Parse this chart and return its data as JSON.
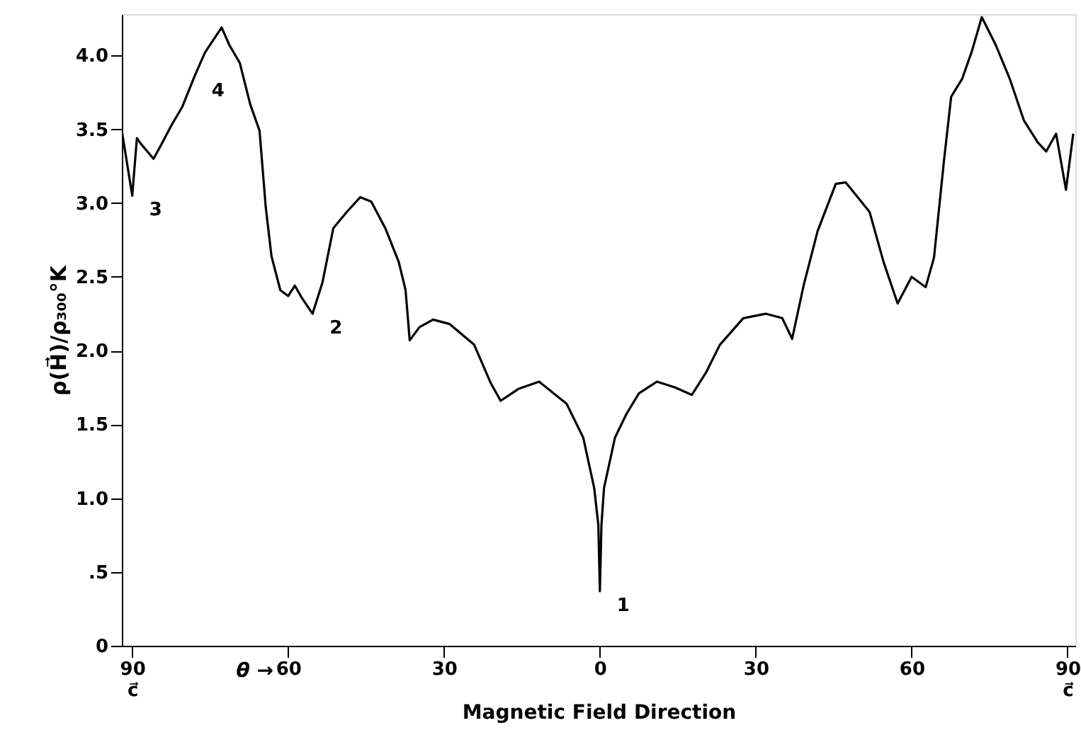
{
  "chart_data": {
    "type": "line",
    "xlabel": "Magnetic Field Direction",
    "ylabel": "ρ(H⃗)/ρ₃₀₀°K",
    "xlim": [
      -92,
      91.5
    ],
    "ylim": [
      0,
      4.28
    ],
    "xticks": [
      {
        "value": -90,
        "label": "90\nc⃗"
      },
      {
        "value": -60,
        "label": "60"
      },
      {
        "value": -30,
        "label": "30"
      },
      0,
      30,
      60,
      {
        "value": 90,
        "label": "90\nc⃗"
      }
    ],
    "yticks": [
      0,
      {
        "value": 0.5,
        "label": ".5"
      },
      {
        "value": 1,
        "label": "1.0"
      },
      1.5,
      {
        "value": 2,
        "label": "2.0"
      },
      2.5,
      {
        "value": 3,
        "label": "3.0"
      },
      3.5,
      {
        "value": 4,
        "label": "4.0"
      }
    ],
    "grid": false,
    "series": [
      {
        "color": "#000000",
        "x": [
          -92,
          -90,
          -89.1,
          -88.3,
          -85.9,
          -84.5,
          -82.4,
          -80.4,
          -78.0,
          -76.0,
          -74.3,
          -72.8,
          -71.3,
          -69.3,
          -67.3,
          -65.5,
          -64.3,
          -63.2,
          -61.5,
          -60,
          -58.7,
          -57.4,
          -55.3,
          -53.4,
          -51.3,
          -48.7,
          -46.1,
          -44.0,
          -41.3,
          -38.7,
          -37.4,
          -36.6,
          -34.7,
          -32.1,
          -28.9,
          -24.2,
          -21.0,
          -19.1,
          -15.7,
          -11.7,
          -6.4,
          -3.2,
          -1.1,
          -0.3,
          0,
          0.3,
          0.8,
          2.9,
          5.1,
          7.5,
          11.0,
          14.5,
          17.7,
          20.4,
          23.1,
          27.6,
          31.9,
          35.1,
          37.0,
          39.2,
          41.9,
          45.4,
          47.3,
          51.9,
          54.6,
          57.3,
          60.0,
          62.7,
          64.3,
          66.2,
          67.6,
          69.7,
          71.6,
          73.5,
          76.2,
          78.9,
          81.6,
          84.3,
          85.9,
          87.8,
          89.7,
          91.1
        ],
        "values": [
          3.49,
          3.05,
          3.44,
          3.4,
          3.3,
          3.39,
          3.53,
          3.65,
          3.86,
          4.02,
          4.11,
          4.19,
          4.07,
          3.95,
          3.67,
          3.49,
          2.97,
          2.64,
          2.41,
          2.37,
          2.44,
          2.36,
          2.25,
          2.46,
          2.83,
          2.94,
          3.04,
          3.01,
          2.83,
          2.6,
          2.41,
          2.07,
          2.16,
          2.21,
          2.18,
          2.04,
          1.78,
          1.66,
          1.74,
          1.79,
          1.64,
          1.41,
          1.07,
          0.82,
          0.37,
          0.82,
          1.07,
          1.41,
          1.57,
          1.71,
          1.79,
          1.75,
          1.7,
          1.85,
          2.04,
          2.22,
          2.25,
          2.22,
          2.08,
          2.44,
          2.81,
          3.13,
          3.14,
          2.94,
          2.6,
          2.32,
          2.5,
          2.43,
          2.63,
          3.28,
          3.72,
          3.84,
          4.03,
          4.26,
          4.07,
          3.84,
          3.56,
          3.41,
          3.35,
          3.47,
          3.09,
          3.47
        ]
      }
    ],
    "annotations": [
      {
        "text": "1",
        "x": 0,
        "y": 0.37
      },
      {
        "text": "2",
        "x": -55.3,
        "y": 2.25
      },
      {
        "text": "3",
        "x": -90,
        "y": 3.05
      },
      {
        "text": "4",
        "x": -78.0,
        "y": 3.86
      },
      "θ →"
    ]
  }
}
